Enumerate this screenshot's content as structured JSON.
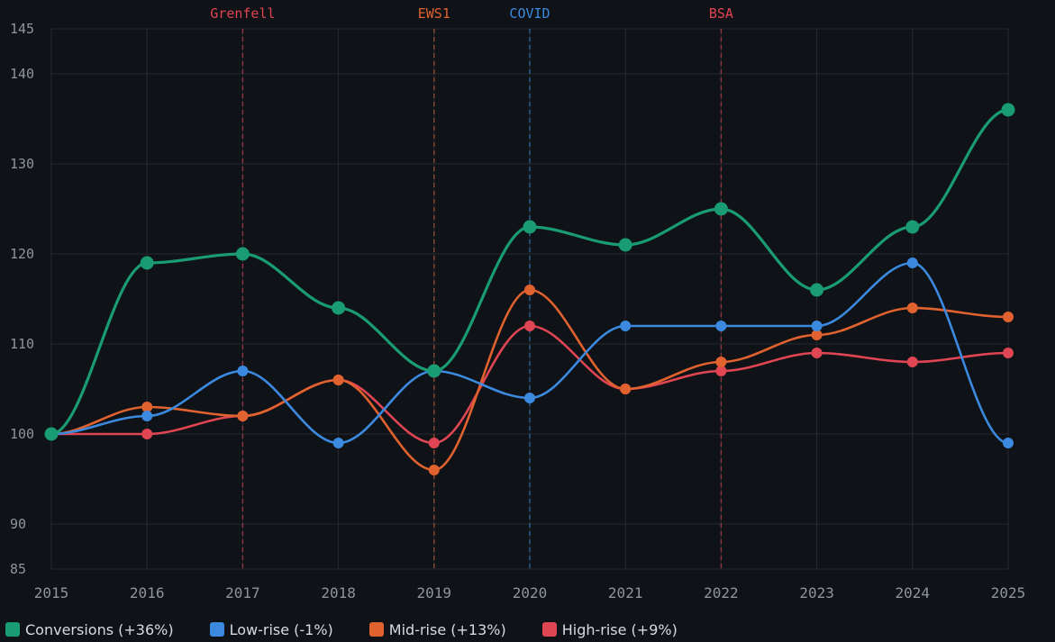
{
  "chart_data": {
    "type": "line",
    "x": [
      2015,
      2016,
      2017,
      2018,
      2019,
      2020,
      2021,
      2022,
      2023,
      2024,
      2025
    ],
    "ylim": [
      85,
      145
    ],
    "yticks": [
      85,
      90,
      100,
      110,
      120,
      130,
      140,
      145
    ],
    "grid": true,
    "legend_position": "bottom-left",
    "series": [
      {
        "name": "Conversions (+36%)",
        "color": "#1a9c72",
        "marker": "large",
        "values": [
          100,
          119,
          120,
          114,
          107,
          123,
          121,
          125,
          116,
          123,
          136
        ]
      },
      {
        "name": "Low-rise (-1%)",
        "color": "#3b8ae0",
        "marker": "small",
        "values": [
          100,
          102,
          107,
          99,
          107,
          104,
          112,
          112,
          112,
          119,
          99
        ]
      },
      {
        "name": "Mid-rise (+13%)",
        "color": "#e0622e",
        "marker": "small",
        "values": [
          100,
          103,
          102,
          106,
          96,
          116,
          105,
          108,
          111,
          114,
          113
        ]
      },
      {
        "name": "High-rise (+9%)",
        "color": "#e04553",
        "marker": "small",
        "values": [
          100,
          100,
          102,
          106,
          99,
          112,
          105,
          107,
          109,
          108,
          109
        ]
      }
    ],
    "annotations": [
      {
        "label": "Grenfell",
        "x": 2017,
        "color": "#e04553"
      },
      {
        "label": "EWS1",
        "x": 2019,
        "color": "#e0622e"
      },
      {
        "label": "COVID",
        "x": 2020,
        "color": "#3b8ae0"
      },
      {
        "label": "BSA",
        "x": 2022,
        "color": "#e04553"
      }
    ]
  }
}
